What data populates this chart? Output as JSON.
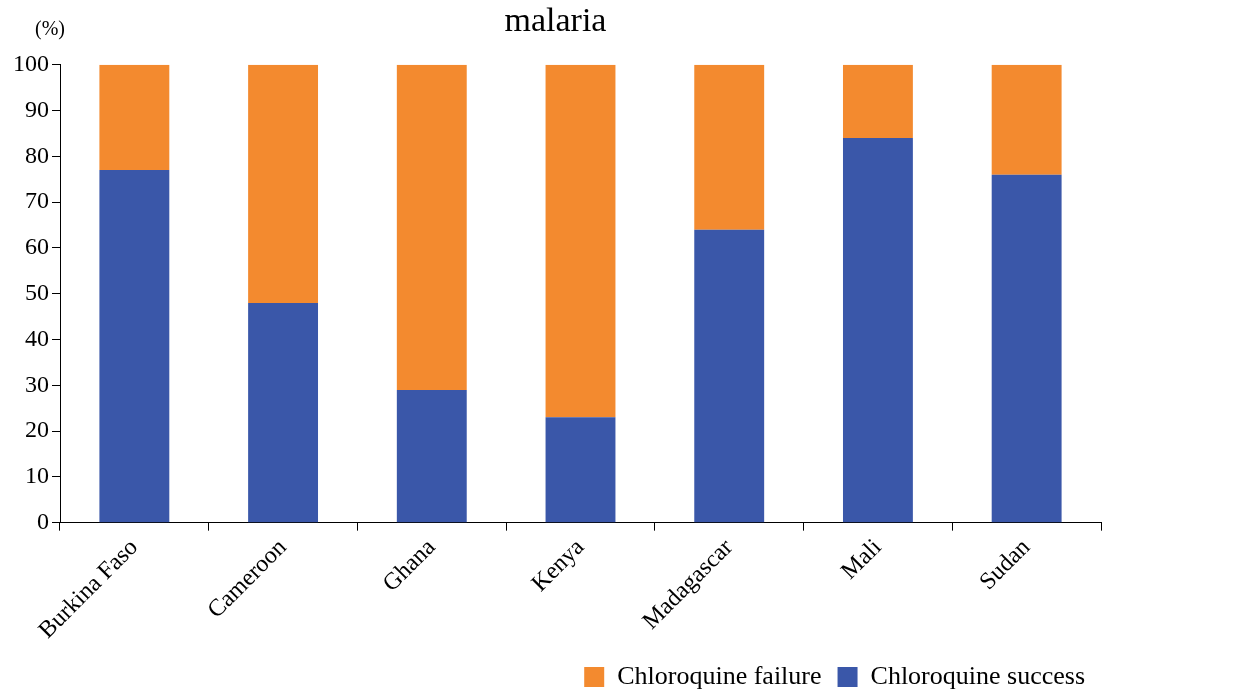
{
  "chart_data": {
    "type": "bar",
    "title": "malaria",
    "ylabel": "(%)",
    "stacked": true,
    "categories": [
      "Burkina Faso",
      "Cameroon",
      "Ghana",
      "Kenya",
      "Madagascar",
      "Mali",
      "Sudan"
    ],
    "series": [
      {
        "name": "Chloroquine success",
        "color": "#3a57a9",
        "values": [
          77,
          48,
          29,
          23,
          64,
          84,
          76
        ]
      },
      {
        "name": "Chloroquine failure",
        "color": "#f38a2f",
        "values": [
          23,
          52,
          71,
          77,
          36,
          16,
          24
        ]
      }
    ],
    "ylim": [
      0,
      100
    ],
    "yticks": [
      0,
      10,
      20,
      30,
      40,
      50,
      60,
      70,
      80,
      90,
      100
    ],
    "grid": false,
    "legend": "bottom right"
  }
}
